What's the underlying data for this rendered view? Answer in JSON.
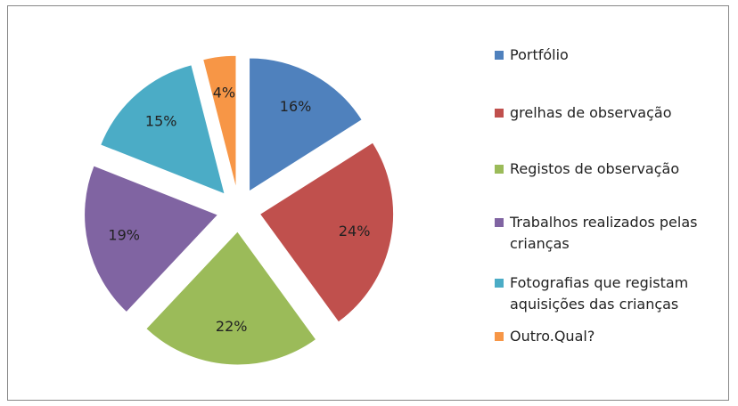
{
  "chart_data": {
    "type": "pie",
    "categories": [
      "Portfólio",
      "grelhas de observação",
      "Registos de observação",
      "Trabalhos realizados pelas crianças",
      "Fotografias que registam aquisições das crianças",
      "Outro.Qual?"
    ],
    "values": [
      16,
      24,
      22,
      19,
      15,
      4
    ],
    "value_labels": [
      "16%",
      "24%",
      "22%",
      "19%",
      "15%",
      "4%"
    ],
    "colors": [
      "#4F81BD",
      "#C0504D",
      "#9BBB59",
      "#8064A2",
      "#4BACC6",
      "#F79646"
    ],
    "exploded": true,
    "legend": "right"
  }
}
